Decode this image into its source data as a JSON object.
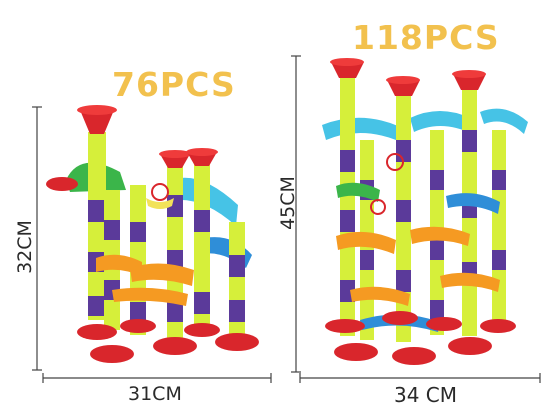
{
  "left_set": {
    "pieces": "76PCS",
    "height": "32CM",
    "width": "31CM"
  },
  "right_set": {
    "pieces": "118PCS",
    "height": "45CM",
    "width": "34 CM"
  },
  "colors": {
    "title": "#f2c14e",
    "red": "#d9262c",
    "yellow_green": "#d6ef3a",
    "purple": "#5b3a9a",
    "orange": "#f59a22",
    "blue": "#2f8ed8",
    "cyan": "#46c3e6",
    "green": "#3bb54a"
  }
}
